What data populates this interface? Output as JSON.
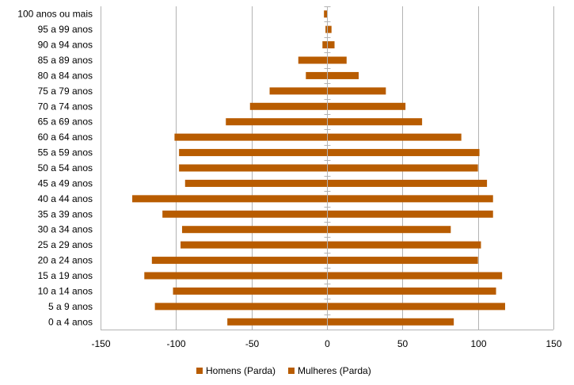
{
  "chart_data": {
    "type": "bar",
    "orientation": "horizontal",
    "title": "",
    "xlabel": "",
    "ylabel": "",
    "xlim": [
      -150,
      150
    ],
    "x_ticks": [
      "-150",
      "-100",
      "-50",
      "0",
      "50",
      "100",
      "150"
    ],
    "grid": "vertical",
    "legend_position": "bottom",
    "categories": [
      "100 anos ou mais",
      "95 a 99 anos",
      "90 a 94 anos",
      "85 a 89 anos",
      "80 a 84 anos",
      "75 a 79 anos",
      "70 a 74 anos",
      "65 a 69 anos",
      "60 a 64 anos",
      "55 a 59 anos",
      "50 a 54 anos",
      "45 a 49 anos",
      "40 a 44 anos",
      "35 a 39 anos",
      "30 a 34 anos",
      "25 a 29 anos",
      "20 a 24 anos",
      "15 a 19 anos",
      "10 a 14 anos",
      "5 a 9 anos",
      "0 a 4 anos"
    ],
    "series": [
      {
        "name": "Homens (Parda)",
        "color": "#b85c00",
        "values": [
          -2,
          -1,
          -3,
          -19,
          -14,
          -38,
          -51,
          -67,
          -101,
          -98,
          -98,
          -94,
          -129,
          -109,
          -96,
          -97,
          -116,
          -121,
          -102,
          -114,
          -66
        ]
      },
      {
        "name": "Mulheres (Parda)",
        "color": "#b85c00",
        "values": [
          0,
          3,
          5,
          13,
          21,
          39,
          52,
          63,
          89,
          101,
          100,
          106,
          110,
          110,
          82,
          102,
          100,
          116,
          112,
          118,
          84
        ]
      }
    ]
  }
}
